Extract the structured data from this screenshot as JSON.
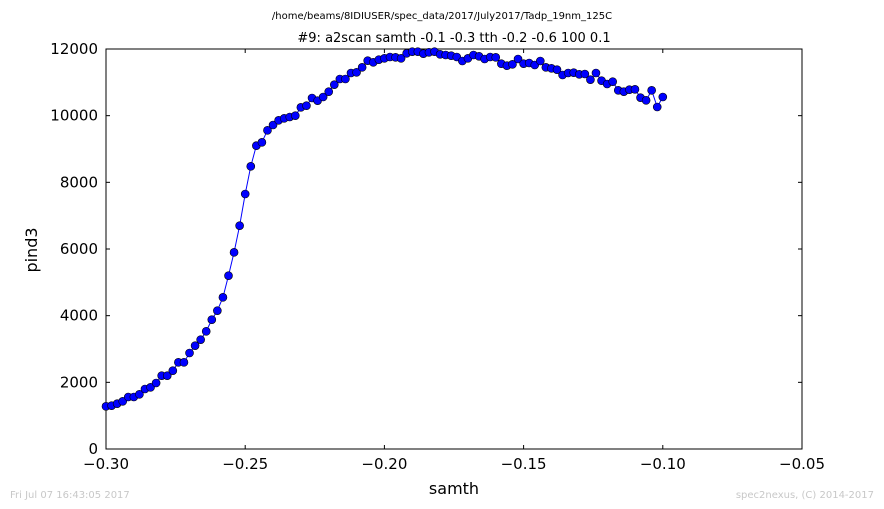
{
  "chart_data": {
    "type": "line",
    "suptitle": "/home/beams/8IDIUSER/spec_data/2017/July2017/Tadp_19nm_125C",
    "title": "#9: a2scan  samth -0.1 -0.3  tth -0.2 -0.6  100 0.1",
    "xlabel": "samth",
    "ylabel": "pind3",
    "xlim": [
      -0.3,
      -0.05
    ],
    "ylim": [
      0,
      12000
    ],
    "xticks": [
      -0.3,
      -0.25,
      -0.2,
      -0.15,
      -0.1,
      -0.05
    ],
    "xtick_labels": [
      "−0.30",
      "−0.25",
      "−0.20",
      "−0.15",
      "−0.10",
      "−0.05"
    ],
    "yticks": [
      0,
      2000,
      4000,
      6000,
      8000,
      10000,
      12000
    ],
    "ytick_labels": [
      "0",
      "2000",
      "4000",
      "6000",
      "8000",
      "10000",
      "12000"
    ],
    "grid": false,
    "series": [
      {
        "color": "#0000ff",
        "marker": "circle",
        "x": [
          -0.3,
          -0.298,
          -0.296,
          -0.294,
          -0.292,
          -0.29,
          -0.288,
          -0.286,
          -0.284,
          -0.282,
          -0.28,
          -0.278,
          -0.276,
          -0.274,
          -0.272,
          -0.27,
          -0.268,
          -0.266,
          -0.264,
          -0.262,
          -0.26,
          -0.258,
          -0.256,
          -0.254,
          -0.252,
          -0.25,
          -0.248,
          -0.246,
          -0.244,
          -0.242,
          -0.24,
          -0.238,
          -0.236,
          -0.234,
          -0.232,
          -0.23,
          -0.228,
          -0.226,
          -0.224,
          -0.222,
          -0.22,
          -0.218,
          -0.216,
          -0.214,
          -0.212,
          -0.21,
          -0.208,
          -0.206,
          -0.204,
          -0.202,
          -0.2,
          -0.198,
          -0.196,
          -0.194,
          -0.192,
          -0.19,
          -0.188,
          -0.186,
          -0.184,
          -0.182,
          -0.18,
          -0.178,
          -0.176,
          -0.174,
          -0.172,
          -0.17,
          -0.168,
          -0.166,
          -0.164,
          -0.162,
          -0.16,
          -0.158,
          -0.156,
          -0.154,
          -0.152,
          -0.15,
          -0.148,
          -0.146,
          -0.144,
          -0.142,
          -0.14,
          -0.138,
          -0.136,
          -0.134,
          -0.132,
          -0.13,
          -0.128,
          -0.126,
          -0.124,
          -0.122,
          -0.12,
          -0.118,
          -0.116,
          -0.114,
          -0.112,
          -0.11,
          -0.108,
          -0.106,
          -0.104,
          -0.102,
          -0.1
        ],
        "y": [
          1280,
          1300,
          1360,
          1430,
          1560,
          1560,
          1640,
          1800,
          1850,
          1980,
          2200,
          2200,
          2350,
          2600,
          2600,
          2880,
          3100,
          3280,
          3530,
          3880,
          4150,
          4550,
          5200,
          5900,
          6700,
          7650,
          8480,
          9100,
          9200,
          9560,
          9720,
          9860,
          9920,
          9960,
          10000,
          10250,
          10300,
          10530,
          10450,
          10560,
          10720,
          10930,
          11100,
          11100,
          11280,
          11300,
          11450,
          11650,
          11600,
          11680,
          11720,
          11760,
          11750,
          11720,
          11870,
          11920,
          11920,
          11860,
          11900,
          11920,
          11840,
          11820,
          11800,
          11760,
          11640,
          11720,
          11820,
          11780,
          11700,
          11760,
          11750,
          11560,
          11500,
          11540,
          11700,
          11560,
          11580,
          11520,
          11640,
          11450,
          11420,
          11380,
          11220,
          11280,
          11290,
          11240,
          11250,
          11080,
          11280,
          11050,
          10950,
          11020,
          10760,
          10720,
          10780,
          10790,
          10540,
          10460,
          10760,
          10260,
          10560
        ]
      }
    ]
  },
  "footer": {
    "left": "Fri Jul 07 16:43:05 2017",
    "right": "spec2nexus, (C) 2014-2017"
  }
}
